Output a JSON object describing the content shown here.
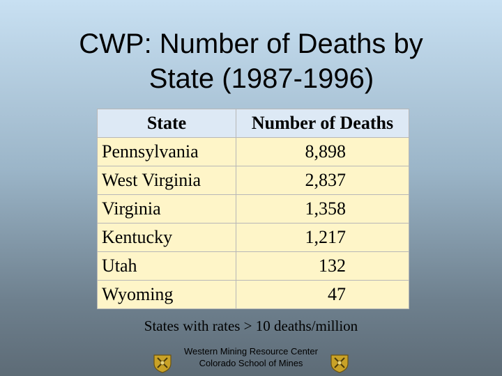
{
  "title": {
    "line1": "CWP:  Number of Deaths by",
    "line2": "State (1987-1996)"
  },
  "table": {
    "headers": [
      "State",
      "Number of Deaths"
    ],
    "rows": [
      [
        "Pennsylvania",
        "8,898"
      ],
      [
        "West Virginia",
        "2,837"
      ],
      [
        "Virginia",
        "1,358"
      ],
      [
        "Kentucky",
        "1,217"
      ],
      [
        "Utah",
        "132"
      ],
      [
        "Wyoming",
        "47"
      ]
    ]
  },
  "caption": "States with rates > 10 deaths/million",
  "footer": {
    "line1": "Western Mining Resource Center",
    "line2": "Colorado School of Mines"
  },
  "logos": {
    "left": "mining-seal-icon",
    "right": "mining-seal-icon"
  },
  "colors": {
    "header_bg": "#dde9f5",
    "cell_bg": "#fef5c8"
  }
}
